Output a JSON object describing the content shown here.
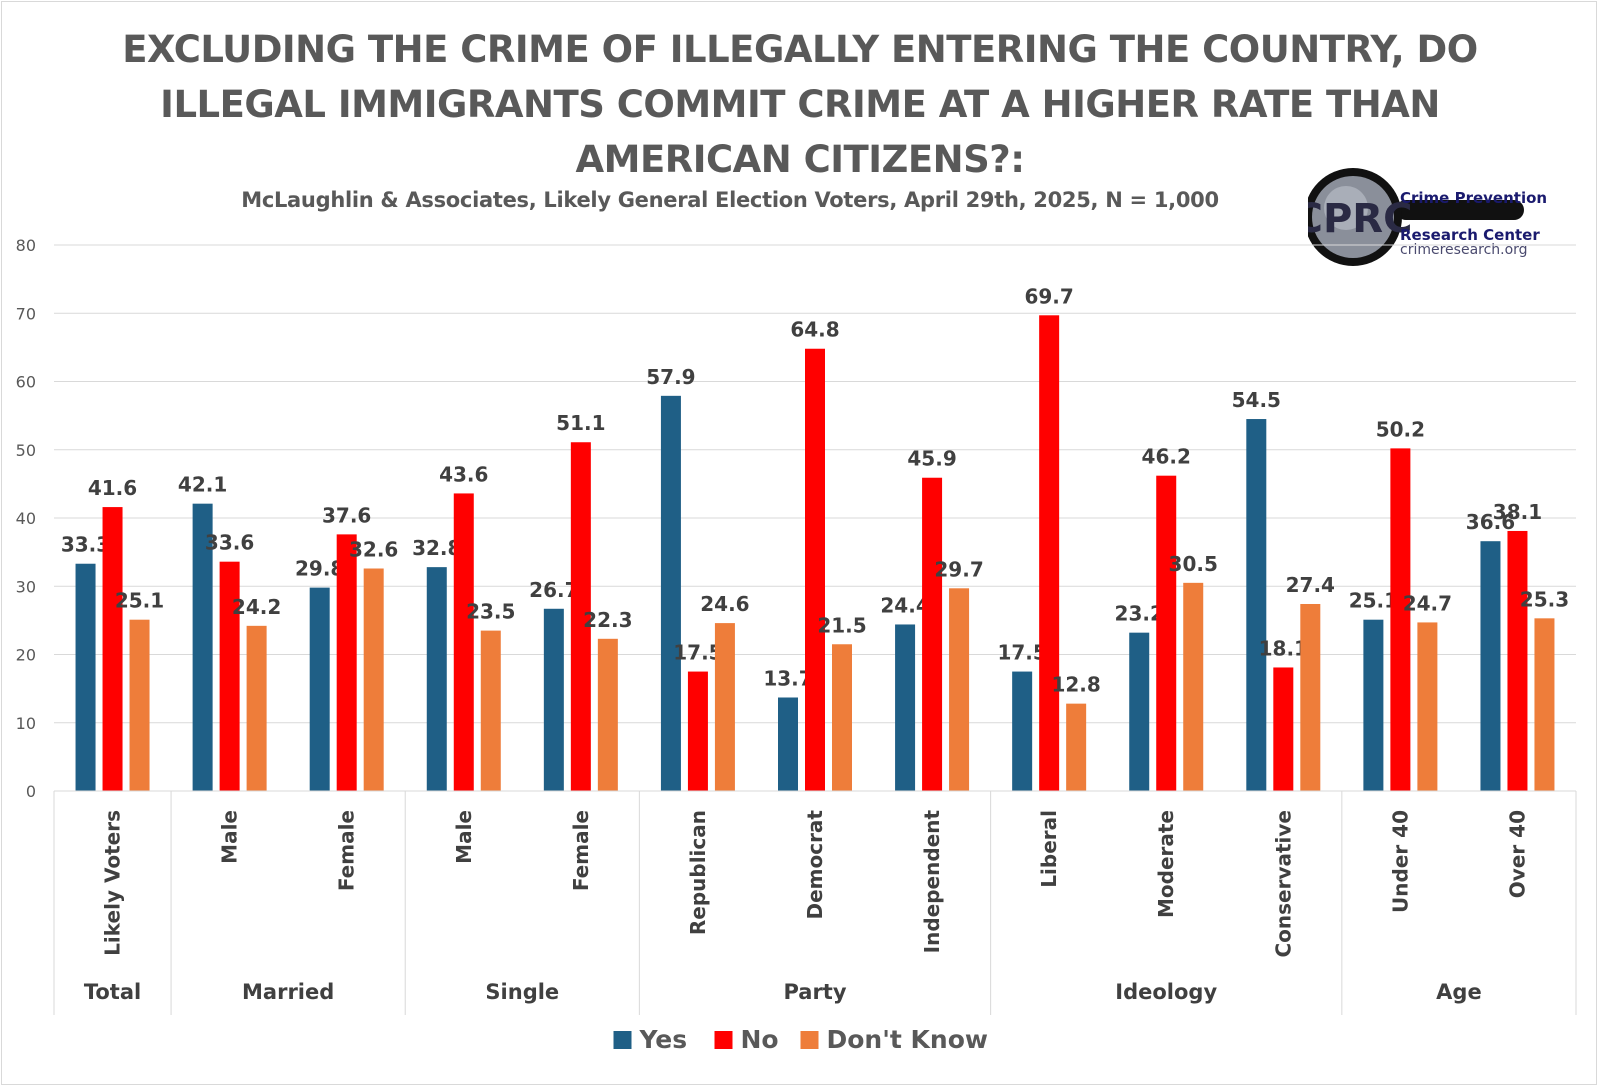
{
  "title_lines": [
    "EXCLUDING THE CRIME OF ILLEGALLY ENTERING THE COUNTRY, DO",
    "ILLEGAL IMMIGRANTS COMMIT CRIME AT A HIGHER RATE THAN",
    "AMERICAN CITIZENS?:"
  ],
  "subtitle": "McLaughlin & Associates, Likely General Election Voters, April 29th, 2025, N = 1,000",
  "logo": {
    "monogram": "CPRC",
    "line1": "Crime Prevention",
    "line2": "Research Center",
    "url": "crimeresearch.org"
  },
  "colors": {
    "yes": "#1f5f86",
    "no": "#ff0000",
    "dont_know": "#ee7d3a",
    "text": "#595959",
    "label": "#404040",
    "grid": "#d9d9d9"
  },
  "chart_data": {
    "type": "bar",
    "ylim": [
      0,
      80
    ],
    "yticks": [
      0,
      10,
      20,
      30,
      40,
      50,
      60,
      70,
      80
    ],
    "grid": true,
    "legend_position": "bottom",
    "categories": [
      "Likely Voters",
      "Male",
      "Female",
      "Male",
      "Female",
      "Republican",
      "Democrat",
      "Independent",
      "Liberal",
      "Moderate",
      "Conservative",
      "Under 40",
      "Over 40"
    ],
    "groups": [
      {
        "label": "Total",
        "count": 1
      },
      {
        "label": "Married",
        "count": 2
      },
      {
        "label": "Single",
        "count": 2
      },
      {
        "label": "Party",
        "count": 3
      },
      {
        "label": "Ideology",
        "count": 3
      },
      {
        "label": "Age",
        "count": 2
      }
    ],
    "series": [
      {
        "name": "Yes",
        "values": [
          33.3,
          42.1,
          29.8,
          32.8,
          26.7,
          57.9,
          13.7,
          24.4,
          17.5,
          23.2,
          54.5,
          25.1,
          36.6
        ]
      },
      {
        "name": "No",
        "values": [
          41.6,
          33.6,
          37.6,
          43.6,
          51.1,
          17.5,
          64.8,
          45.9,
          69.7,
          46.2,
          18.1,
          50.2,
          38.1
        ]
      },
      {
        "name": "Don't Know",
        "values": [
          25.1,
          24.2,
          32.6,
          23.5,
          22.3,
          24.6,
          21.5,
          29.7,
          12.8,
          30.5,
          27.4,
          24.7,
          25.3
        ]
      }
    ]
  }
}
